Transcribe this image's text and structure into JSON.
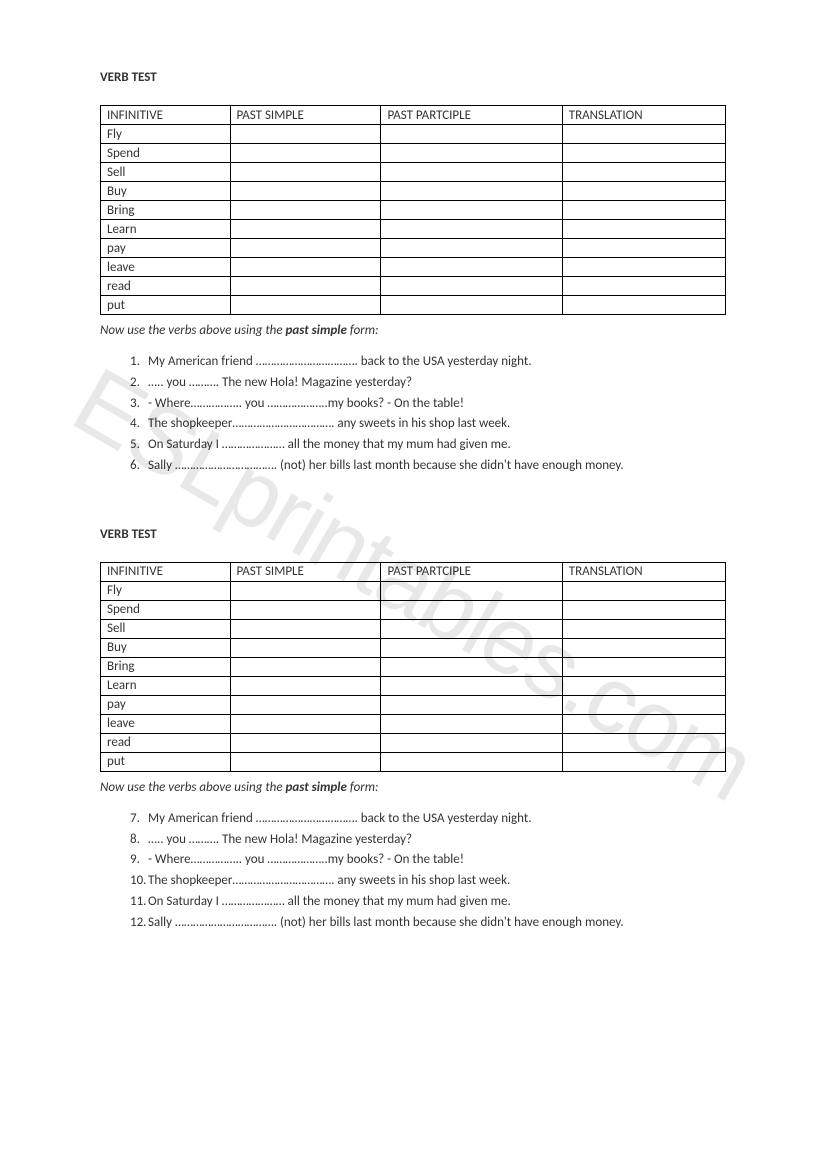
{
  "watermark": "ESLprintables.com",
  "sections": [
    {
      "title": "VERB TEST",
      "table": {
        "headers": [
          "INFINITIVE",
          "PAST SIMPLE",
          "PAST PARTCIPLE",
          "TRANSLATION"
        ],
        "rows": [
          [
            "Fly",
            "",
            "",
            ""
          ],
          [
            "Spend",
            "",
            "",
            ""
          ],
          [
            "Sell",
            "",
            "",
            ""
          ],
          [
            "Buy",
            "",
            "",
            ""
          ],
          [
            "Bring",
            "",
            "",
            ""
          ],
          [
            "Learn",
            "",
            "",
            ""
          ],
          [
            "pay",
            "",
            "",
            ""
          ],
          [
            "leave",
            "",
            "",
            ""
          ],
          [
            "read",
            "",
            "",
            ""
          ],
          [
            "put",
            "",
            "",
            ""
          ]
        ]
      },
      "instruction_prefix": "Now use the verbs above using the ",
      "instruction_bold": "past simple",
      "instruction_suffix": " form:",
      "questions": [
        {
          "n": "1.",
          "text": "My American friend ……………………………. back to the USA yesterday night."
        },
        {
          "n": "2.",
          "text": "….. you ………. The new Hola! Magazine yesterday?"
        },
        {
          "n": "3.",
          "text": "- Where…………….. you ………………..my books?  - On the table!"
        },
        {
          "n": "4.",
          "text": "The shopkeeper……………………………. any sweets in his shop last week."
        },
        {
          "n": "5.",
          "text": "On Saturday I ………………… all the money that my mum had given me."
        },
        {
          "n": "6.",
          "text": "Sally ……………………………. (not) her bills last month because she didn't have enough money."
        }
      ]
    },
    {
      "title": "VERB TEST",
      "table": {
        "headers": [
          "INFINITIVE",
          "PAST SIMPLE",
          "PAST PARTCIPLE",
          "TRANSLATION"
        ],
        "rows": [
          [
            "Fly",
            "",
            "",
            ""
          ],
          [
            "Spend",
            "",
            "",
            ""
          ],
          [
            "Sell",
            "",
            "",
            ""
          ],
          [
            "Buy",
            "",
            "",
            ""
          ],
          [
            "Bring",
            "",
            "",
            ""
          ],
          [
            "Learn",
            "",
            "",
            ""
          ],
          [
            "pay",
            "",
            "",
            ""
          ],
          [
            "leave",
            "",
            "",
            ""
          ],
          [
            "read",
            "",
            "",
            ""
          ],
          [
            "put",
            "",
            "",
            ""
          ]
        ]
      },
      "instruction_prefix": "Now use the verbs above using the ",
      "instruction_bold": "past simple",
      "instruction_suffix": " form:",
      "questions": [
        {
          "n": "7.",
          "text": "My American friend ……………………………. back to the USA yesterday night."
        },
        {
          "n": "8.",
          "text": "….. you ………. The new Hola! Magazine yesterday?"
        },
        {
          "n": "9.",
          "text": "- Where…………….. you ………………..my books?  - On the table!"
        },
        {
          "n": "10.",
          "text": "The shopkeeper……………………………. any sweets in his shop last week."
        },
        {
          "n": "11.",
          "text": "On Saturday I ………………… all the money that my mum had given me."
        },
        {
          "n": "12.",
          "text": "Sally ……………………………. (not) her bills last month because she didn't have enough money."
        }
      ]
    }
  ]
}
